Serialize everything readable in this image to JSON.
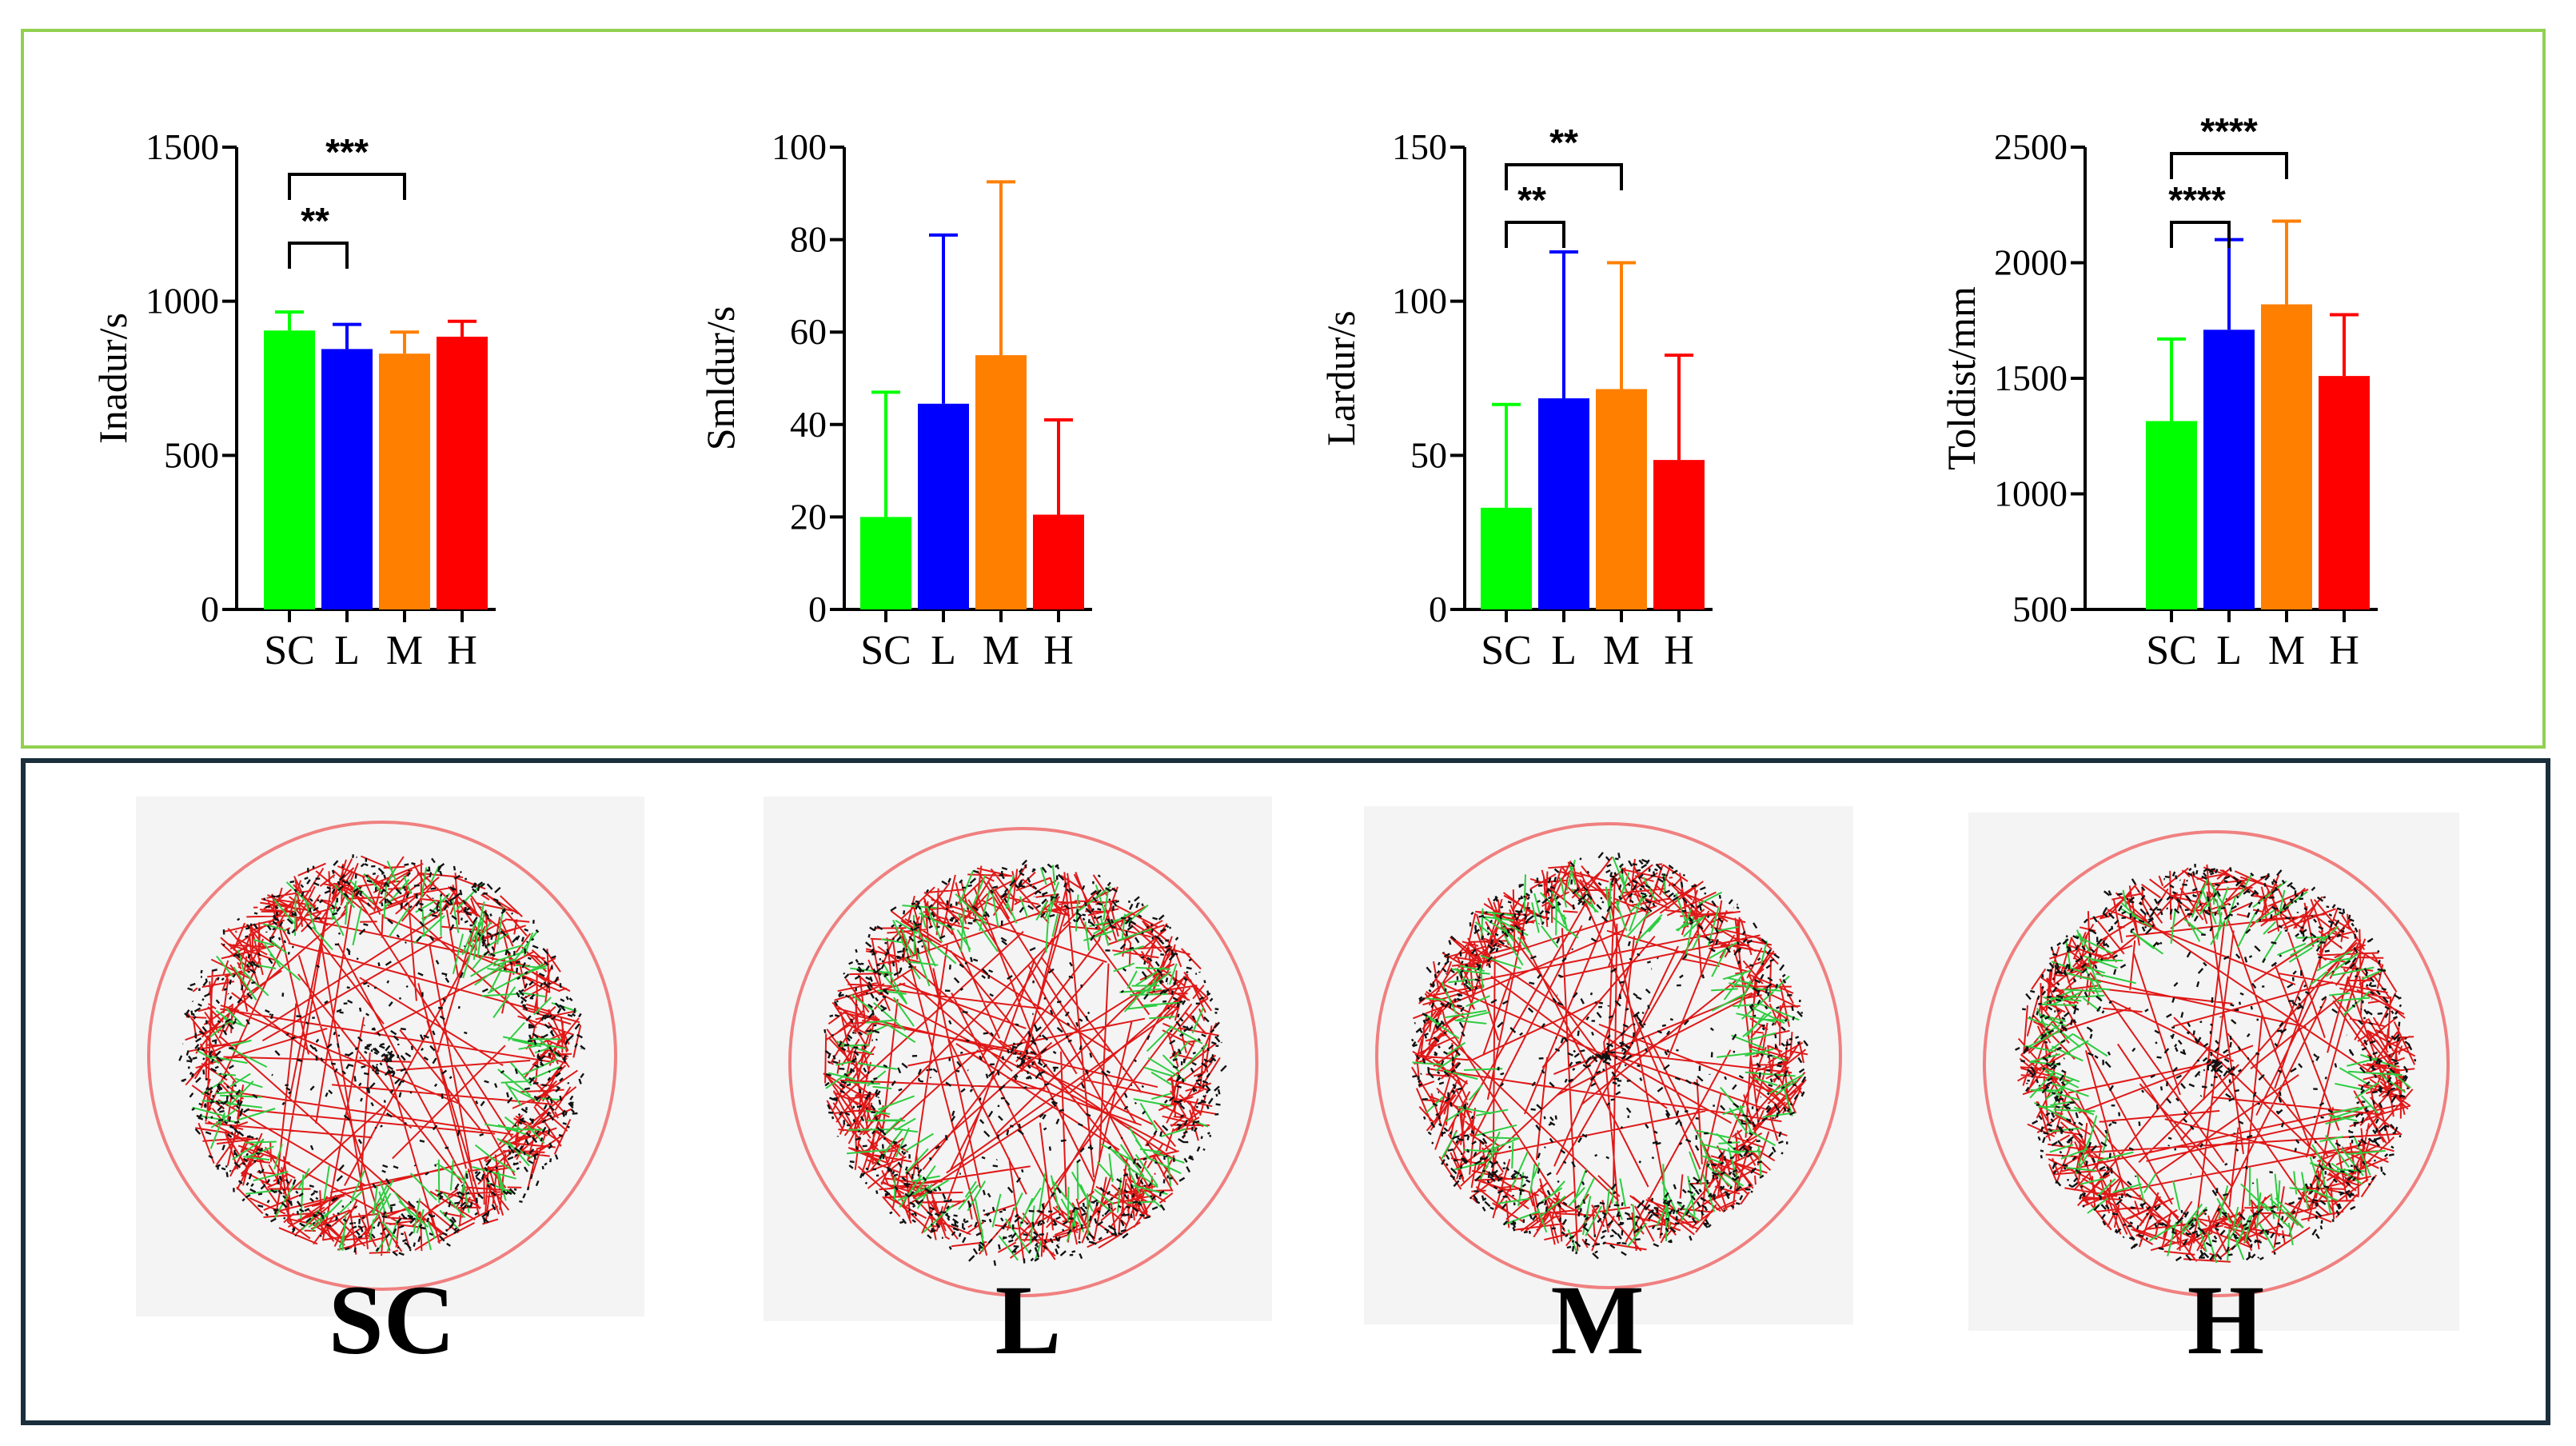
{
  "colors": {
    "SC": "#00ff00",
    "L": "#0000ff",
    "M": "#ff7f00",
    "H": "#ff0000",
    "top_border": "#92d050",
    "bottom_border": "#1a2e3b",
    "arena_ring": "#f08080"
  },
  "chart_data": [
    {
      "type": "bar",
      "ylabel": "Inadur/s",
      "categories": [
        "SC",
        "L",
        "M",
        "H"
      ],
      "values": [
        905,
        845,
        830,
        885
      ],
      "errors": [
        60,
        80,
        70,
        50
      ],
      "ylim": [
        0,
        1500
      ],
      "yticks": [
        0,
        500,
        1000,
        1500
      ],
      "significance": [
        {
          "from": 0,
          "to": 1,
          "label": "**"
        },
        {
          "from": 0,
          "to": 2,
          "label": "***"
        }
      ]
    },
    {
      "type": "bar",
      "ylabel": "Smldur/s",
      "categories": [
        "SC",
        "L",
        "M",
        "H"
      ],
      "values": [
        20,
        44.5,
        55,
        20.5
      ],
      "errors": [
        27,
        36.5,
        37.5,
        20.5
      ],
      "ylim": [
        0,
        100
      ],
      "yticks": [
        0,
        20,
        40,
        60,
        80,
        100
      ],
      "significance": []
    },
    {
      "type": "bar",
      "ylabel": "Lardur/s",
      "categories": [
        "SC",
        "L",
        "M",
        "H"
      ],
      "values": [
        33,
        68.5,
        71.5,
        48.5
      ],
      "errors": [
        33.5,
        47.5,
        41,
        34
      ],
      "ylim": [
        0,
        150
      ],
      "yticks": [
        0,
        50,
        100,
        150
      ],
      "significance": [
        {
          "from": 0,
          "to": 1,
          "label": "**"
        },
        {
          "from": 0,
          "to": 2,
          "label": "**"
        }
      ]
    },
    {
      "type": "bar",
      "ylabel": "Toldist/mm",
      "categories": [
        "SC",
        "L",
        "M",
        "H"
      ],
      "values": [
        1315,
        1710,
        1820,
        1510
      ],
      "errors": [
        355,
        390,
        360,
        265
      ],
      "ylim": [
        500,
        2500
      ],
      "yticks": [
        500,
        1000,
        1500,
        2000,
        2500
      ],
      "significance": [
        {
          "from": 0,
          "to": 1,
          "label": "****"
        },
        {
          "from": 0,
          "to": 2,
          "label": "****"
        }
      ]
    }
  ],
  "arenas": [
    {
      "label": "SC",
      "color_key": "SC"
    },
    {
      "label": "L",
      "color_key": "L"
    },
    {
      "label": "M",
      "color_key": "M"
    },
    {
      "label": "H",
      "color_key": "H"
    }
  ]
}
